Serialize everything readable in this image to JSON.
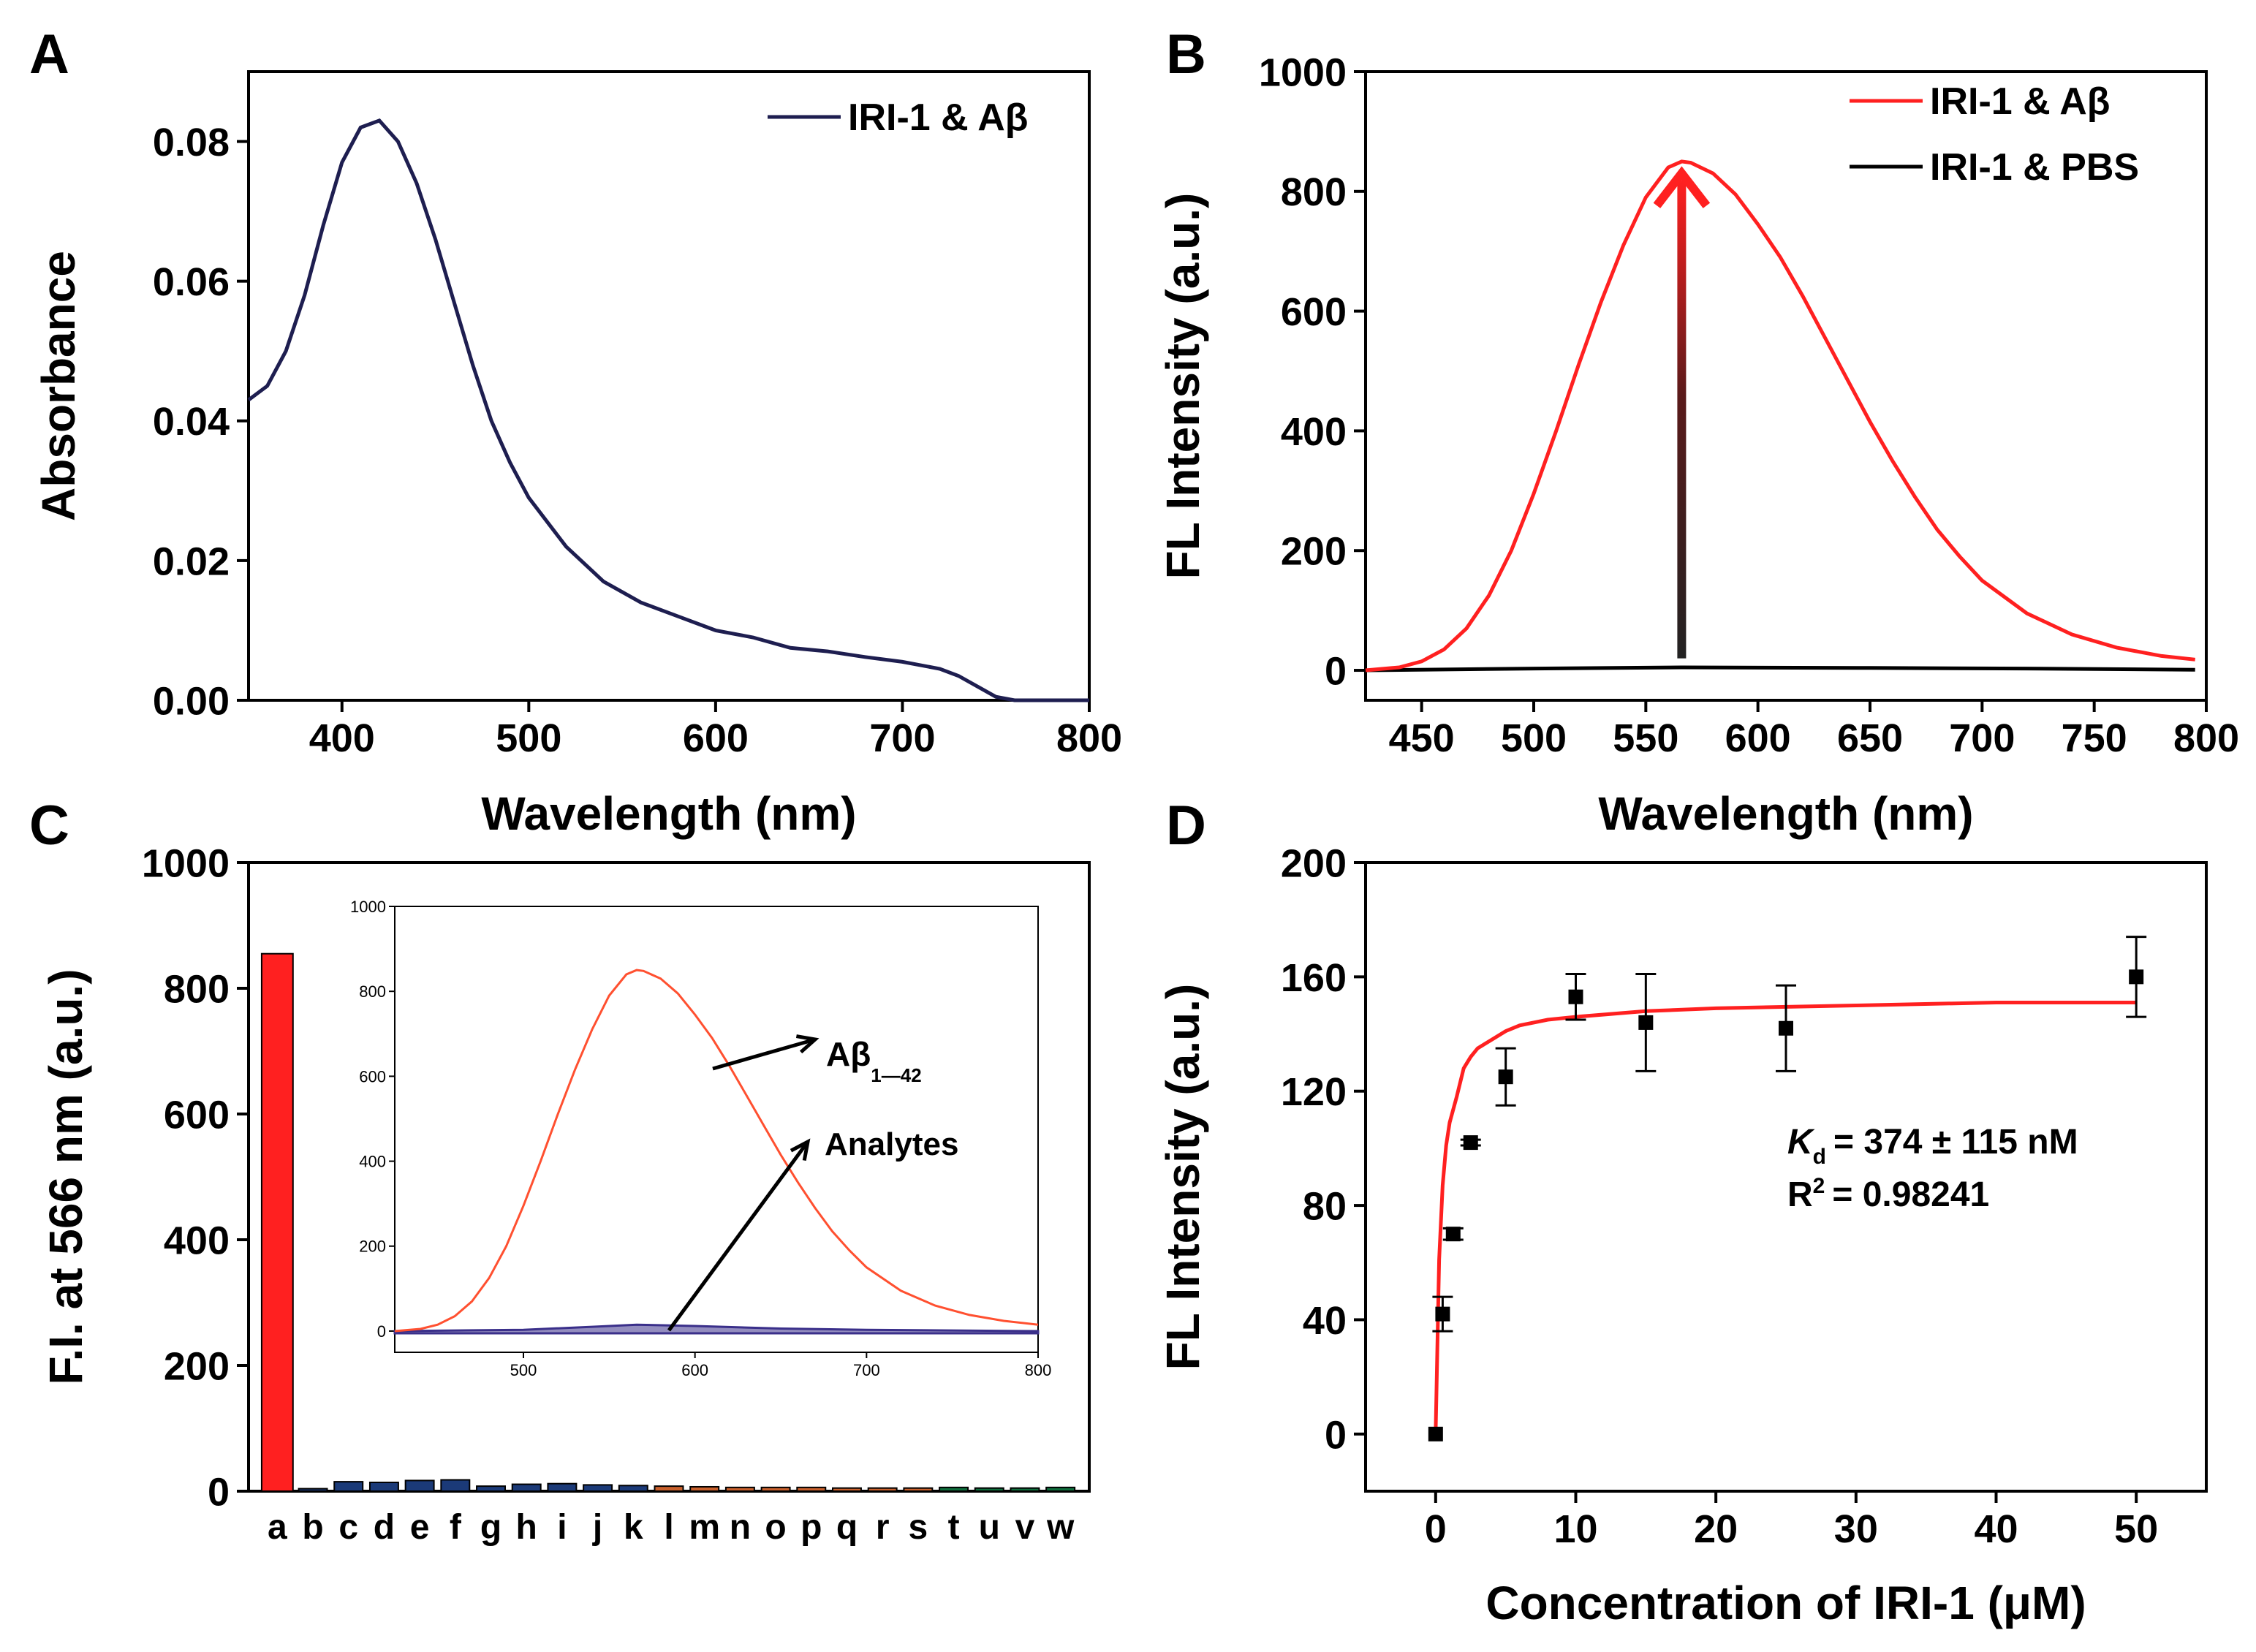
{
  "figure": {
    "panels": [
      "A",
      "B",
      "C",
      "D"
    ]
  },
  "chart_data": [
    {
      "panel": "A",
      "type": "line",
      "xlabel": "Wavelength (nm)",
      "ylabel": "Absorbance",
      "xlim": [
        350,
        800
      ],
      "ylim": [
        0,
        0.09
      ],
      "xticks": [
        "400",
        "500",
        "600",
        "700",
        "800"
      ],
      "yticks": [
        "0.00",
        "0.02",
        "0.04",
        "0.06",
        "0.08"
      ],
      "legend": [
        "IRI-1 & Aβ"
      ],
      "legend_position": "top-right",
      "series": [
        {
          "name": "IRI-1 & Aβ",
          "color": "#1e1e50",
          "x": [
            350,
            360,
            370,
            380,
            390,
            400,
            410,
            420,
            430,
            440,
            450,
            460,
            470,
            480,
            490,
            500,
            520,
            540,
            560,
            580,
            600,
            620,
            640,
            660,
            680,
            700,
            720,
            730,
            740,
            750,
            760,
            780,
            800
          ],
          "y": [
            0.043,
            0.045,
            0.05,
            0.058,
            0.068,
            0.077,
            0.082,
            0.083,
            0.08,
            0.074,
            0.066,
            0.057,
            0.048,
            0.04,
            0.034,
            0.029,
            0.022,
            0.017,
            0.014,
            0.012,
            0.01,
            0.009,
            0.0075,
            0.007,
            0.0062,
            0.0055,
            0.0045,
            0.0035,
            0.002,
            0.0005,
            0.0,
            0.0,
            0.0
          ]
        }
      ]
    },
    {
      "panel": "B",
      "type": "line",
      "xlabel": "Wavelength (nm)",
      "ylabel": "FL Intensity (a.u.)",
      "xlim": [
        425,
        800
      ],
      "ylim": [
        -50,
        1000
      ],
      "xticks": [
        "450",
        "500",
        "550",
        "600",
        "650",
        "700",
        "750",
        "800"
      ],
      "yticks": [
        "0",
        "200",
        "400",
        "600",
        "800",
        "1000"
      ],
      "legend": [
        "IRI-1 & Aβ",
        "IRI-1 & PBS"
      ],
      "legend_position": "top-right",
      "arrow": {
        "x": 566,
        "from": 20,
        "to": 830
      },
      "series": [
        {
          "name": "IRI-1 & Aβ",
          "color": "#ff2020",
          "x": [
            425,
            440,
            450,
            460,
            470,
            480,
            490,
            500,
            510,
            520,
            530,
            540,
            550,
            560,
            566,
            570,
            580,
            590,
            600,
            610,
            620,
            630,
            640,
            650,
            660,
            670,
            680,
            690,
            700,
            720,
            740,
            760,
            780,
            795
          ],
          "y": [
            0,
            5,
            15,
            35,
            70,
            125,
            200,
            295,
            400,
            510,
            615,
            710,
            790,
            840,
            850,
            848,
            830,
            795,
            745,
            690,
            625,
            555,
            485,
            415,
            350,
            290,
            235,
            190,
            150,
            95,
            60,
            38,
            24,
            18
          ]
        },
        {
          "name": "IRI-1 & PBS",
          "color": "#000000",
          "x": [
            425,
            500,
            566,
            650,
            720,
            795
          ],
          "y": [
            0,
            3,
            5,
            4,
            3,
            1
          ]
        }
      ]
    },
    {
      "panel": "C",
      "type": "bar",
      "xlabel": "",
      "ylabel": "F.I. at 566 nm (a.u.)",
      "ylim": [
        0,
        1000
      ],
      "yticks": [
        "0",
        "200",
        "400",
        "600",
        "800",
        "1000"
      ],
      "categories": [
        "a",
        "b",
        "c",
        "d",
        "e",
        "f",
        "g",
        "h",
        "i",
        "j",
        "k",
        "l",
        "m",
        "n",
        "o",
        "p",
        "q",
        "r",
        "s",
        "t",
        "u",
        "v",
        "w"
      ],
      "values": [
        855,
        4,
        15,
        14,
        17,
        18,
        8,
        11,
        12,
        10,
        9,
        8,
        7,
        6,
        6,
        6,
        5,
        5,
        5,
        6,
        5,
        5,
        6
      ],
      "colors": [
        "#ff2020",
        "#1b3a78",
        "#1b3a78",
        "#1b3a78",
        "#1b3a78",
        "#1b3a78",
        "#1b3a78",
        "#1b3a78",
        "#1b3a78",
        "#1b3a78",
        "#1b3a78",
        "#c8602c",
        "#c8602c",
        "#c8602c",
        "#c8602c",
        "#c8602c",
        "#c8602c",
        "#c8602c",
        "#c8602c",
        "#0f6e3c",
        "#0f6e3c",
        "#0f6e3c",
        "#0f6e3c"
      ],
      "inset": {
        "type": "line",
        "xlim": [
          425,
          800
        ],
        "ylim": [
          -50,
          1000
        ],
        "xticks": [
          "500",
          "600",
          "700",
          "800"
        ],
        "yticks": [
          "0",
          "200",
          "400",
          "600",
          "800",
          "1000"
        ],
        "label_main": "Aβ",
        "label_sub": "1—42",
        "label_analytes": "Analytes",
        "series": [
          {
            "name": "Aβ1—42",
            "color": "#ff5030",
            "x": [
              425,
              440,
              450,
              460,
              470,
              480,
              490,
              500,
              510,
              520,
              530,
              540,
              550,
              560,
              566,
              570,
              580,
              590,
              600,
              610,
              620,
              630,
              640,
              650,
              660,
              670,
              680,
              690,
              700,
              720,
              740,
              760,
              780,
              800
            ],
            "y": [
              0,
              5,
              15,
              35,
              70,
              125,
              200,
              295,
              400,
              510,
              615,
              710,
              790,
              840,
              850,
              848,
              830,
              795,
              745,
              690,
              625,
              555,
              485,
              415,
              350,
              290,
              235,
              190,
              150,
              95,
              60,
              38,
              24,
              15
            ]
          },
          {
            "name": "Analytes",
            "color": "#3a2f8a",
            "x": [
              425,
              500,
              540,
              566,
              600,
              650,
              700,
              800
            ],
            "y": [
              0,
              3,
              10,
              15,
              12,
              6,
              3,
              0
            ]
          }
        ]
      }
    },
    {
      "panel": "D",
      "type": "scatter",
      "xlabel": "Concentration of IRI-1 (μM)",
      "ylabel": "FL Intensity (a.u.)",
      "xlim": [
        -5,
        55
      ],
      "ylim": [
        -20,
        200
      ],
      "xticks": [
        "0",
        "10",
        "20",
        "30",
        "40",
        "50"
      ],
      "yticks": [
        "0",
        "40",
        "80",
        "120",
        "160",
        "200"
      ],
      "x": [
        0,
        0.5,
        1.25,
        2.5,
        5,
        10,
        15,
        25,
        50
      ],
      "y": [
        0,
        42,
        70,
        102,
        125,
        153,
        144,
        142,
        160
      ],
      "yerr": [
        0,
        6,
        2,
        1,
        10,
        8,
        17,
        15,
        14
      ],
      "fit": {
        "color": "#ff2020",
        "bmax": 152,
        "kd": 0.374,
        "x": [
          0,
          0.25,
          0.5,
          0.75,
          1,
          1.5,
          2,
          2.5,
          3,
          4,
          5,
          6,
          8,
          10,
          15,
          20,
          30,
          40,
          50
        ],
        "y": [
          0,
          61,
          87,
          101,
          109,
          118,
          128,
          132,
          135,
          138,
          141,
          143,
          145,
          146,
          148,
          149,
          150,
          151,
          151
        ]
      },
      "annotation_kd_symbol": "K",
      "annotation_kd_sub": "d",
      "annotation_kd_value": "= 374 ± 115 nM",
      "annotation_r2_symbol": "R",
      "annotation_r2_sup": "2",
      "annotation_r2_value": "= 0.98241"
    }
  ]
}
